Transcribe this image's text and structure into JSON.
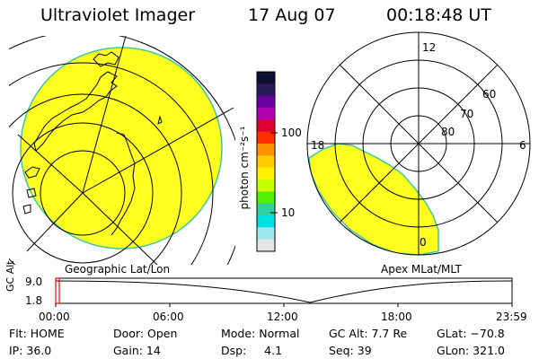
{
  "header": {
    "instrument": "Ultraviolet Imager",
    "date": "17 Aug 07",
    "time": "00:18:48 UT"
  },
  "colorbar": {
    "label": "photon cm⁻²s⁻¹",
    "tick_100": "100",
    "tick_10": "10",
    "scale": "log",
    "colors": [
      "#0f0f33",
      "#2a1a5a",
      "#6a00a0",
      "#b000b0",
      "#e00030",
      "#ff3000",
      "#ff9000",
      "#ffcc00",
      "#fff000",
      "#c8ff00",
      "#50f000",
      "#30d0a0",
      "#00e0e0",
      "#a0e8f0",
      "#e6e6e6"
    ]
  },
  "left_panel": {
    "label": "Geographic Lat/Lon",
    "fill_color": "#ffff20"
  },
  "right_panel": {
    "label": "Apex MLat/MLT",
    "mlt_12": "12",
    "mlt_18": "18",
    "mlt_6": "6",
    "mlt_0": "0",
    "lat_60": "60",
    "lat_70": "70",
    "lat_80": "80",
    "fill_color": "#ffff20"
  },
  "timeline": {
    "ylabel": "GC Alt",
    "y_top": "9.0",
    "y_bottom": "1.8",
    "ticks": [
      "00:00",
      "06:00",
      "12:00",
      "18:00",
      "23:59"
    ],
    "marker_color": "#ff0000"
  },
  "status": {
    "flt": "Flt: HOME",
    "door": "Door: Open",
    "mode": "Mode: Normal",
    "gc_alt": "GC Alt: 7.7 Re",
    "glat": "GLat: −70.8",
    "ip": "IP: 36.0",
    "gain": "Gain: 14",
    "dsp": "Dsp:     4.1",
    "seq": "Seq: 39",
    "glon": "GLon: 321.0"
  }
}
